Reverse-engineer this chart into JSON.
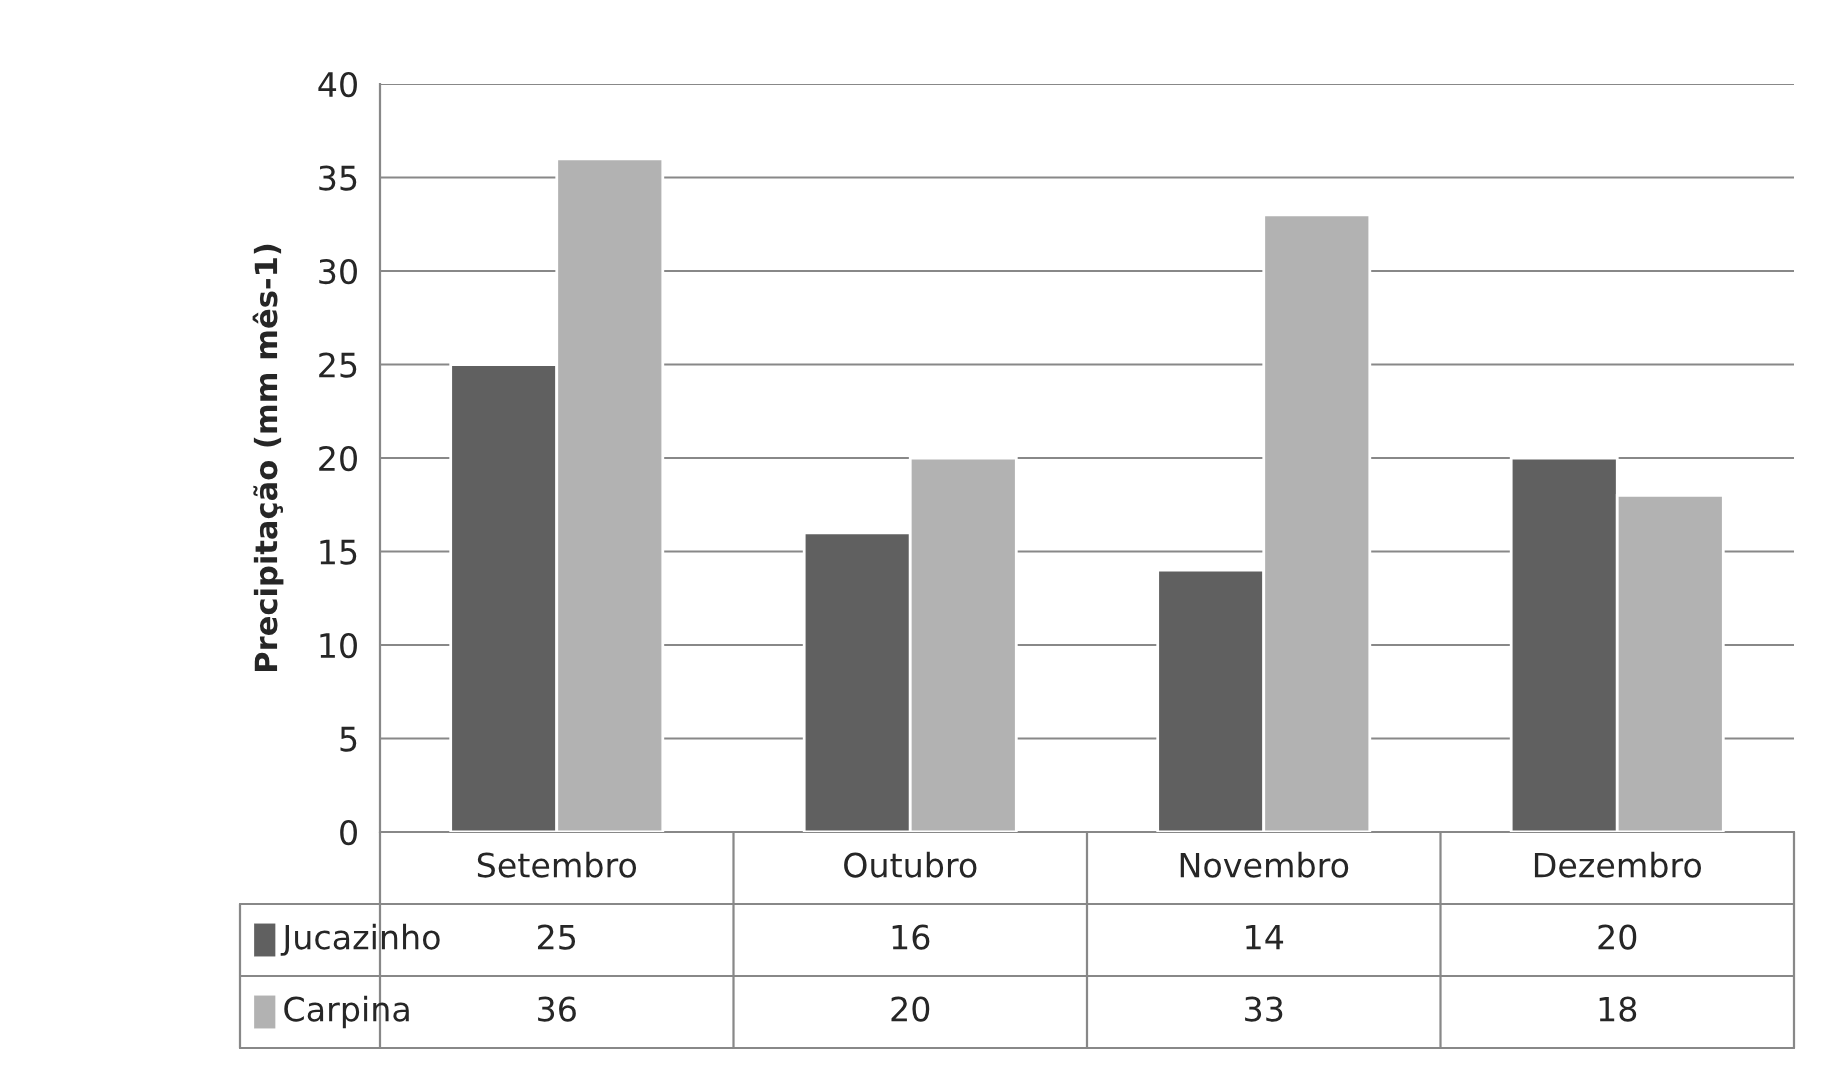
{
  "chart_data": {
    "type": "bar",
    "ylabel": "Precipitação (mm mês-1)",
    "categories": [
      "Setembro",
      "Outubro",
      "Novembro",
      "Dezembro"
    ],
    "series": [
      {
        "name": "Jucazinho",
        "color": "#606060",
        "values": [
          25,
          16,
          14,
          20
        ]
      },
      {
        "name": "Carpina",
        "color": "#b2b2b2",
        "values": [
          36,
          20,
          33,
          18
        ]
      }
    ],
    "ylim": [
      0,
      40
    ],
    "yticks": [
      0,
      5,
      10,
      15,
      20,
      25,
      30,
      35,
      40
    ],
    "grid": "y",
    "data_labels": true,
    "legend": "bottom"
  }
}
